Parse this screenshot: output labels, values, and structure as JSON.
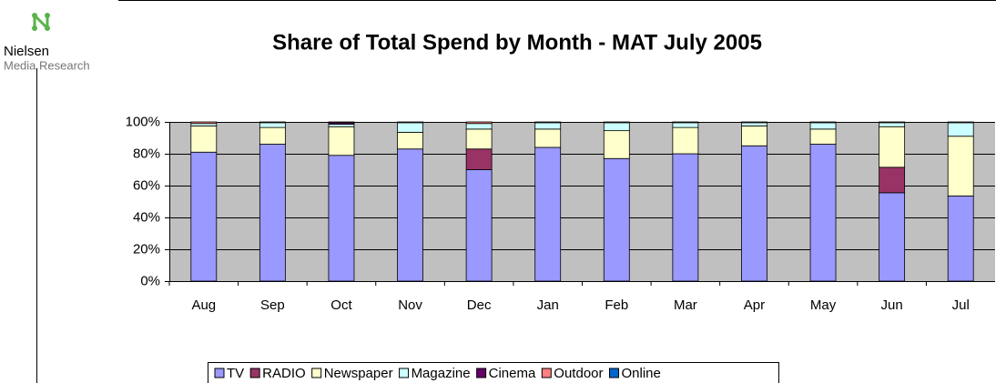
{
  "logo": {
    "name": "Nielsen",
    "subtitle": "Media Research"
  },
  "chart_data": {
    "type": "stacked_bar",
    "title": "Share of Total Spend by Month - MAT  July 2005",
    "categories": [
      "Aug",
      "Sep",
      "Oct",
      "Nov",
      "Dec",
      "Jan",
      "Feb",
      "Mar",
      "Apr",
      "May",
      "Jun",
      "Jul"
    ],
    "series": [
      {
        "name": "TV",
        "color": "#9999ff",
        "values": [
          81,
          86,
          79,
          83,
          70,
          84,
          77,
          80,
          85,
          86,
          55.5,
          53.5
        ]
      },
      {
        "name": "RADIO",
        "color": "#993366",
        "values": [
          0,
          0,
          0,
          0,
          13,
          0,
          0,
          0,
          0,
          0,
          16,
          0
        ]
      },
      {
        "name": "Newspaper",
        "color": "#ffffcc",
        "values": [
          16.5,
          10.5,
          18,
          10.5,
          12.5,
          11.5,
          17.5,
          16.5,
          12.5,
          9.5,
          25.5,
          37.5
        ]
      },
      {
        "name": "Magazine",
        "color": "#ccffff",
        "values": [
          1.5,
          3,
          1.5,
          6,
          3.5,
          4,
          5,
          3,
          2,
          4,
          2.5,
          8.5
        ]
      },
      {
        "name": "Cinema",
        "color": "#660066",
        "values": [
          0,
          0,
          1,
          0,
          0,
          0,
          0,
          0,
          0,
          0,
          0,
          0
        ]
      },
      {
        "name": "Outdoor",
        "color": "#ff8080",
        "values": [
          1,
          0.5,
          0.5,
          0.5,
          1,
          0.5,
          0.5,
          0.5,
          0.5,
          0.5,
          0.5,
          0.5
        ]
      },
      {
        "name": "Online",
        "color": "#0066cc",
        "values": [
          0,
          0,
          0,
          0,
          0,
          0,
          0,
          0,
          0,
          0,
          0,
          0
        ]
      }
    ],
    "ylim": [
      0,
      100
    ],
    "yticks": [
      {
        "value": 0,
        "label": "0%"
      },
      {
        "value": 20,
        "label": "20%"
      },
      {
        "value": 40,
        "label": "40%"
      },
      {
        "value": 60,
        "label": "60%"
      },
      {
        "value": 80,
        "label": "80%"
      },
      {
        "value": 100,
        "label": "100%"
      }
    ],
    "grid": true,
    "plot_background": "#c0c0c0",
    "legend": "bottom"
  }
}
